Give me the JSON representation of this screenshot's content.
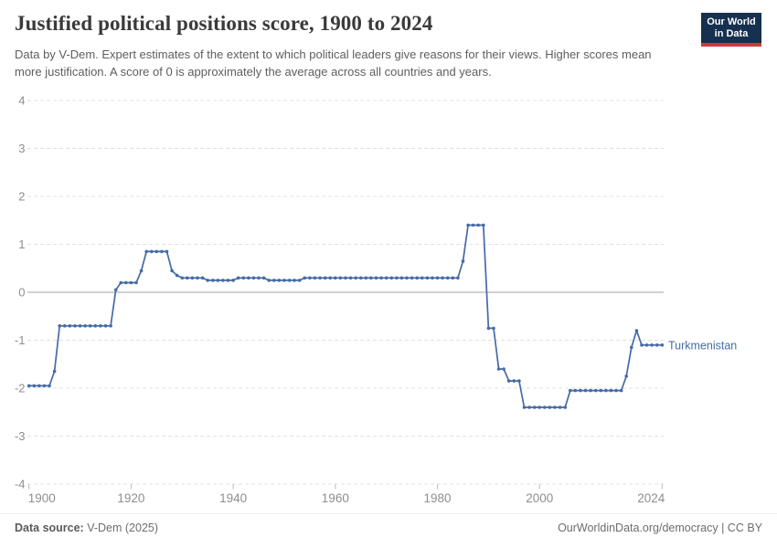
{
  "header": {
    "title": "Justified political positions score, 1900 to 2024",
    "subtitle": "Data by V-Dem. Expert estimates of the extent to which political leaders give reasons for their views. Higher scores mean more justification. A score of 0 is approximately the average across all countries and years."
  },
  "logo": {
    "line1": "Our World",
    "line2": "in Data",
    "bg_color": "#16304f",
    "bar_color": "#cd3b34"
  },
  "chart_data": {
    "type": "line",
    "title": "Justified political positions score, 1900 to 2024",
    "xlabel": "",
    "ylabel": "",
    "xlim": [
      1900,
      2024
    ],
    "ylim": [
      -4,
      4
    ],
    "grid": true,
    "x_ticks": [
      1900,
      1920,
      1940,
      1960,
      1980,
      2000,
      2024
    ],
    "y_ticks": [
      4,
      3,
      2,
      1,
      0,
      -1,
      -2,
      -3,
      -4
    ],
    "zero_line": true,
    "legend_position": "right-of-line-end-label",
    "series": [
      {
        "name": "Turkmenistan",
        "color": "#466aa6",
        "year_start": 1900,
        "year_end": 2024,
        "values": [
          -1.95,
          -1.95,
          -1.95,
          -1.95,
          -1.95,
          -1.65,
          -0.7,
          -0.7,
          -0.7,
          -0.7,
          -0.7,
          -0.7,
          -0.7,
          -0.7,
          -0.7,
          -0.7,
          -0.7,
          0.05,
          0.2,
          0.2,
          0.2,
          0.2,
          0.45,
          0.85,
          0.85,
          0.85,
          0.85,
          0.85,
          0.45,
          0.35,
          0.3,
          0.3,
          0.3,
          0.3,
          0.3,
          0.25,
          0.25,
          0.25,
          0.25,
          0.25,
          0.25,
          0.3,
          0.3,
          0.3,
          0.3,
          0.3,
          0.3,
          0.25,
          0.25,
          0.25,
          0.25,
          0.25,
          0.25,
          0.25,
          0.3,
          0.3,
          0.3,
          0.3,
          0.3,
          0.3,
          0.3,
          0.3,
          0.3,
          0.3,
          0.3,
          0.3,
          0.3,
          0.3,
          0.3,
          0.3,
          0.3,
          0.3,
          0.3,
          0.3,
          0.3,
          0.3,
          0.3,
          0.3,
          0.3,
          0.3,
          0.3,
          0.3,
          0.3,
          0.3,
          0.3,
          0.65,
          1.4,
          1.4,
          1.4,
          1.4,
          -0.75,
          -0.75,
          -1.6,
          -1.6,
          -1.85,
          -1.85,
          -1.85,
          -2.4,
          -2.4,
          -2.4,
          -2.4,
          -2.4,
          -2.4,
          -2.4,
          -2.4,
          -2.4,
          -2.05,
          -2.05,
          -2.05,
          -2.05,
          -2.05,
          -2.05,
          -2.05,
          -2.05,
          -2.05,
          -2.05,
          -2.05,
          -1.75,
          -1.15,
          -0.8,
          -1.1,
          -1.1,
          -1.1,
          -1.1,
          -1.1
        ]
      }
    ]
  },
  "colors": {
    "line": "#466aa6",
    "gridline": "#e0e0e0",
    "zero_line": "#a3a3a3",
    "tick_label": "#8e8e8e"
  },
  "footer": {
    "source_label": "Data source:",
    "source_value": "V-Dem (2025)",
    "link_text": "OurWorldinData.org/democracy | CC BY"
  }
}
